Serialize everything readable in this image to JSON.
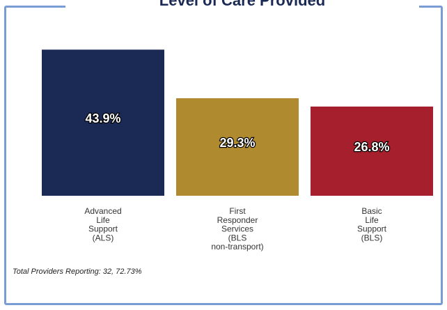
{
  "chart_data": {
    "type": "bar",
    "title": "Level of Care Provided",
    "categories": [
      [
        "Advanced",
        "Life",
        "Support",
        "(ALS)"
      ],
      [
        "First",
        "Responder",
        "Services",
        "(BLS",
        "non-transport)"
      ],
      [
        "Basic",
        "Life",
        "Support",
        "(BLS)"
      ]
    ],
    "values": [
      43.9,
      29.3,
      26.8
    ],
    "data_labels": [
      "43.9%",
      "29.3%",
      "26.8%"
    ],
    "colors": [
      "#1b2a55",
      "#b08a2f",
      "#a61f2c"
    ],
    "ylim": [
      0,
      45
    ],
    "grid": false,
    "legend": "none",
    "footnote": "Total Providers Reporting: 32, 72.73%"
  }
}
